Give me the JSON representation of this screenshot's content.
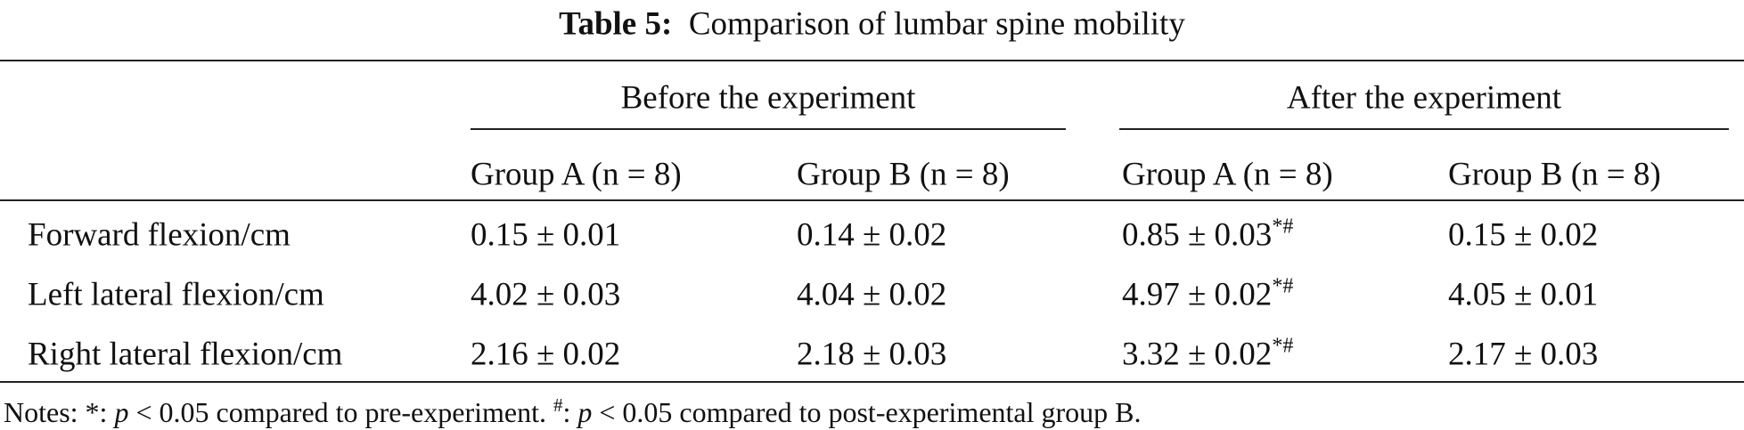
{
  "title": {
    "label": "Table 5:",
    "text": "Comparison of lumbar spine mobility"
  },
  "table": {
    "group_headers": [
      "Before the experiment",
      "After the experiment"
    ],
    "column_headers": [
      "Group A (n = 8)",
      "Group B (n = 8)",
      "Group A (n = 8)",
      "Group B (n = 8)"
    ],
    "rows": [
      {
        "label": "Forward flexion/cm",
        "cells": [
          {
            "value": "0.15 ± 0.01"
          },
          {
            "value": "0.14 ± 0.02"
          },
          {
            "value": "0.85 ± 0.03",
            "sup": "*#"
          },
          {
            "value": "0.15 ± 0.02"
          }
        ]
      },
      {
        "label": "Left lateral flexion/cm",
        "cells": [
          {
            "value": "4.02 ± 0.03"
          },
          {
            "value": "4.04 ± 0.02"
          },
          {
            "value": "4.97 ± 0.02",
            "sup": "*#"
          },
          {
            "value": "4.05 ± 0.01"
          }
        ]
      },
      {
        "label": "Right lateral flexion/cm",
        "cells": [
          {
            "value": "2.16 ± 0.02"
          },
          {
            "value": "2.18 ± 0.03"
          },
          {
            "value": "3.32 ± 0.02",
            "sup": "*#"
          },
          {
            "value": "2.17 ± 0.03"
          }
        ]
      }
    ]
  },
  "notes": [
    "Notes: *: ",
    "p",
    " < 0.05 compared to pre-experiment. ",
    "#",
    ": ",
    "p",
    " < 0.05 compared to post-experimental group B."
  ]
}
